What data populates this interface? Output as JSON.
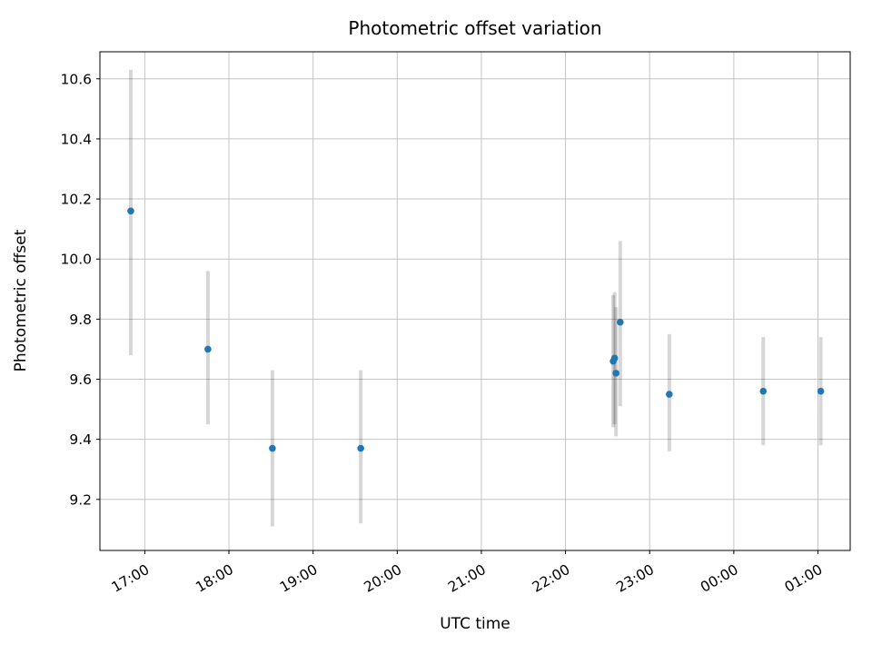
{
  "chart_data": {
    "type": "scatter",
    "title": "Photometric offset variation",
    "xlabel": "UTC time",
    "ylabel": "Photometric offset",
    "grid": true,
    "grid_color": "#c4c4c4",
    "frame_color": "#000000",
    "point_color": "#1f77b4",
    "errorbar_color": "rgba(0,0,0,0.16)",
    "x_ticks": [
      "17:00",
      "18:00",
      "19:00",
      "20:00",
      "21:00",
      "22:00",
      "23:00",
      "00:00",
      "01:00"
    ],
    "y_ticks": [
      "9.2",
      "9.4",
      "9.6",
      "9.8",
      "10.0",
      "10.2",
      "10.4",
      "10.6"
    ],
    "xlim": [
      "16:28",
      "01:23"
    ],
    "ylim": [
      9.03,
      10.69
    ],
    "points": [
      {
        "t": "16:50",
        "y": 10.16,
        "lo": 9.68,
        "hi": 10.63
      },
      {
        "t": "17:45",
        "y": 9.7,
        "lo": 9.45,
        "hi": 9.96
      },
      {
        "t": "18:31",
        "y": 9.37,
        "lo": 9.11,
        "hi": 9.63
      },
      {
        "t": "19:34",
        "y": 9.37,
        "lo": 9.12,
        "hi": 9.63
      },
      {
        "t": "22:34",
        "y": 9.66,
        "lo": 9.44,
        "hi": 9.88
      },
      {
        "t": "22:35",
        "y": 9.67,
        "lo": 9.45,
        "hi": 9.89
      },
      {
        "t": "22:36",
        "y": 9.62,
        "lo": 9.41,
        "hi": 9.84
      },
      {
        "t": "22:39",
        "y": 9.79,
        "lo": 9.51,
        "hi": 10.06
      },
      {
        "t": "23:14",
        "y": 9.55,
        "lo": 9.36,
        "hi": 9.75
      },
      {
        "t": "00:21",
        "y": 9.56,
        "lo": 9.38,
        "hi": 9.74
      },
      {
        "t": "01:02",
        "y": 9.56,
        "lo": 9.38,
        "hi": 9.74
      }
    ]
  }
}
